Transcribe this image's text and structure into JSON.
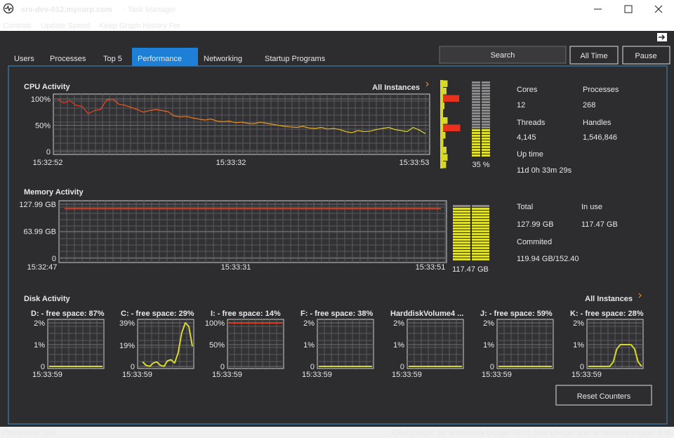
{
  "window": {
    "host": "srv-dev-012.mycorp.com",
    "title": "- Task Manager"
  },
  "menu": [
    "Controls",
    "Update Speed",
    "Keep Graph History For"
  ],
  "tabs": [
    "Users",
    "Processes",
    "Top 5",
    "Performance",
    "Networking",
    "Startup Programs"
  ],
  "selected_tab": 3,
  "search_placeholder": "Search",
  "buttons": [
    "All Time",
    "Pause"
  ],
  "cpu": {
    "type": "line",
    "title": "CPU Activity",
    "instances": "All Instances",
    "ylim": [
      0,
      100
    ],
    "yticks": [
      {
        "value": 100,
        "label": "100%"
      },
      {
        "value": 50,
        "label": "50%"
      },
      0
    ],
    "xticks": [
      "15:32:52",
      "15:33:32",
      "15:33:53"
    ],
    "colors": [
      "#e8321e",
      "#e8901e",
      "#d8d82a"
    ],
    "values": [
      100,
      92,
      97,
      88,
      86,
      72,
      78,
      80,
      98,
      100,
      90,
      88,
      84,
      80,
      75,
      78,
      80,
      78,
      76,
      68,
      66,
      67,
      64,
      62,
      60,
      62,
      58,
      57,
      58,
      55,
      56,
      54,
      53,
      56,
      54,
      52,
      50,
      48,
      47,
      46,
      48,
      45,
      44,
      46,
      43,
      44,
      42,
      38,
      36,
      40,
      38,
      39,
      42,
      44,
      46,
      42,
      40,
      38,
      46,
      41,
      34
    ],
    "core_usage": [
      35,
      30,
      90,
      20,
      12,
      35,
      95,
      25,
      15,
      30,
      35,
      28
    ],
    "meter": {
      "value": 35,
      "label": "35 %"
    }
  },
  "cpu_stats": [
    {
      "label": "Cores",
      "value": "12"
    },
    {
      "label": "Processes",
      "value": "268"
    },
    {
      "label": "Threads",
      "value": "4,145"
    },
    {
      "label": "Handles",
      "value": "1,546,846"
    },
    {
      "label": "Up time",
      "value": "11d 0h 33m 29s"
    }
  ],
  "memory": {
    "type": "line",
    "title": "Memory Activity",
    "ylim": [
      0,
      127.99
    ],
    "yticks": [
      {
        "value": 127.99,
        "label": "127.99 GB"
      },
      {
        "value": 63.99,
        "label": "63.99 GB"
      },
      0
    ],
    "xticks": [
      "15:32:47",
      "15:33:31",
      "15:33:51"
    ],
    "color": "#e03a1e",
    "values": [
      117.47,
      117.47,
      117.47,
      117.47,
      117.47,
      117.47,
      117.47,
      117.47,
      117.47,
      117.47,
      117.47,
      117.47,
      117.47,
      117.47,
      117.47,
      117.47,
      117.47,
      117.47,
      117.47,
      117.47
    ],
    "meter": {
      "value": 117.47,
      "label": "117.47 GB"
    }
  },
  "memory_stats": [
    {
      "label": "Total",
      "value": "127.99 GB"
    },
    {
      "label": "In use",
      "value": "117.47 GB"
    },
    {
      "label": "Commited",
      "value": "119.94 GB/152.40"
    }
  ],
  "disk": {
    "title": "Disk Activity",
    "instances": "All Instances",
    "time": "15:33:59",
    "charts": [
      {
        "type": "line",
        "title": "D: - free space: 87%",
        "color": "#d8d82a",
        "ylim": [
          0,
          2
        ],
        "yticks": [
          {
            "value": 2,
            "label": "2%"
          },
          {
            "value": 1,
            "label": "1%"
          },
          0
        ],
        "values": [
          0,
          0,
          0,
          0,
          0,
          0,
          0,
          0,
          0,
          0,
          0,
          0,
          0,
          0,
          0,
          0
        ]
      },
      {
        "type": "line",
        "title": "C: - free space: 29%",
        "color": "#d8d82a",
        "top_label_color": "#e04040",
        "ylim": [
          0,
          39
        ],
        "yticks": [
          {
            "value": 39,
            "label": "39%"
          },
          {
            "value": 19,
            "label": "19%"
          },
          0
        ],
        "values": [
          null,
          4,
          1,
          0,
          3,
          4,
          1,
          0,
          5,
          6,
          3,
          12,
          30,
          39,
          36,
          18
        ]
      },
      {
        "type": "line",
        "title": "I: - free space: 14%",
        "color": "#e03a1e",
        "ylim": [
          0,
          100
        ],
        "yticks": [
          {
            "value": 100,
            "label": "100%"
          },
          {
            "value": 50,
            "label": "50%"
          },
          0
        ],
        "values": [
          100,
          100,
          100,
          100,
          100,
          100,
          100,
          100,
          100,
          100,
          100,
          100,
          100,
          100,
          100,
          100
        ]
      },
      {
        "type": "line",
        "title": "F: - free space: 38%",
        "color": "#d8d82a",
        "ylim": [
          0,
          2
        ],
        "yticks": [
          {
            "value": 2,
            "label": "2%"
          },
          {
            "value": 1,
            "label": "1%"
          },
          0
        ],
        "values": [
          0,
          0,
          0,
          0,
          0,
          0,
          0,
          0,
          0,
          0,
          0,
          0,
          0,
          0,
          0,
          0
        ]
      },
      {
        "type": "line",
        "title": "HarddiskVolume4 ...",
        "color": "#d8d82a",
        "ylim": [
          0,
          2
        ],
        "yticks": [
          {
            "value": 2,
            "label": "2%"
          },
          {
            "value": 1,
            "label": "1%"
          },
          0
        ],
        "values": [
          0,
          0,
          0,
          0,
          0,
          0,
          0,
          0,
          0,
          0,
          0,
          0,
          0,
          0,
          0,
          0
        ]
      },
      {
        "type": "line",
        "title": "J: - free space: 59%",
        "color": "#d8d82a",
        "ylim": [
          0,
          2
        ],
        "yticks": [
          {
            "value": 2,
            "label": "2%"
          },
          {
            "value": 1,
            "label": "1%"
          },
          0
        ],
        "values": [
          0,
          0,
          0,
          0,
          0,
          0,
          0,
          0,
          0,
          0,
          0,
          0,
          0,
          0,
          0,
          0
        ]
      },
      {
        "type": "line",
        "title": "K: - free space: 28%",
        "color": "#d8d82a",
        "top_label_color": "#e04040",
        "ylim": [
          0,
          2
        ],
        "yticks": [
          {
            "value": 2,
            "label": "2%"
          },
          {
            "value": 1,
            "label": "1%"
          },
          0
        ],
        "values": [
          0,
          0,
          0,
          0,
          0,
          0,
          0,
          0.2,
          0.8,
          1,
          1,
          1,
          1,
          0.8,
          0.2,
          0
        ]
      }
    ]
  },
  "reset_button": "Reset Counters",
  "status": {
    "left": "Processes: 268",
    "right": "CPU Usage: 35 % Memory Usage: 92 % Disk Usage: 100 % Network Usage: 0 %"
  }
}
